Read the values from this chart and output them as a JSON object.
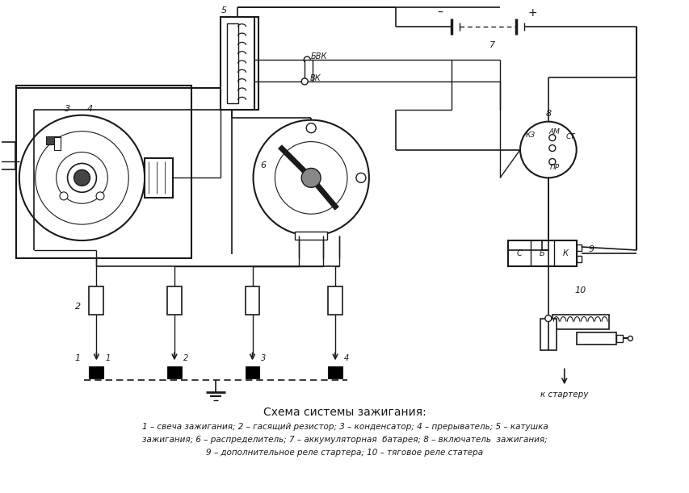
{
  "title": "Схема системы зажигания:",
  "caption_line1": "1 – свеча зажигания; 2 – гасящий резистор; 3 – конденсатор; 4 – прерыватель; 5 – катушка",
  "caption_line2": "зажигания; 6 – распределитель; 7 – аккумуляторная  батарея; 8 – включатель  зажигания;",
  "caption_line3": "9 – дополнительное реле стартера; 10 – тяговое реле статера",
  "bg_color": "#ffffff",
  "line_color": "#1a1a1a",
  "fig_width": 8.54,
  "fig_height": 6.11,
  "dpi": 100
}
